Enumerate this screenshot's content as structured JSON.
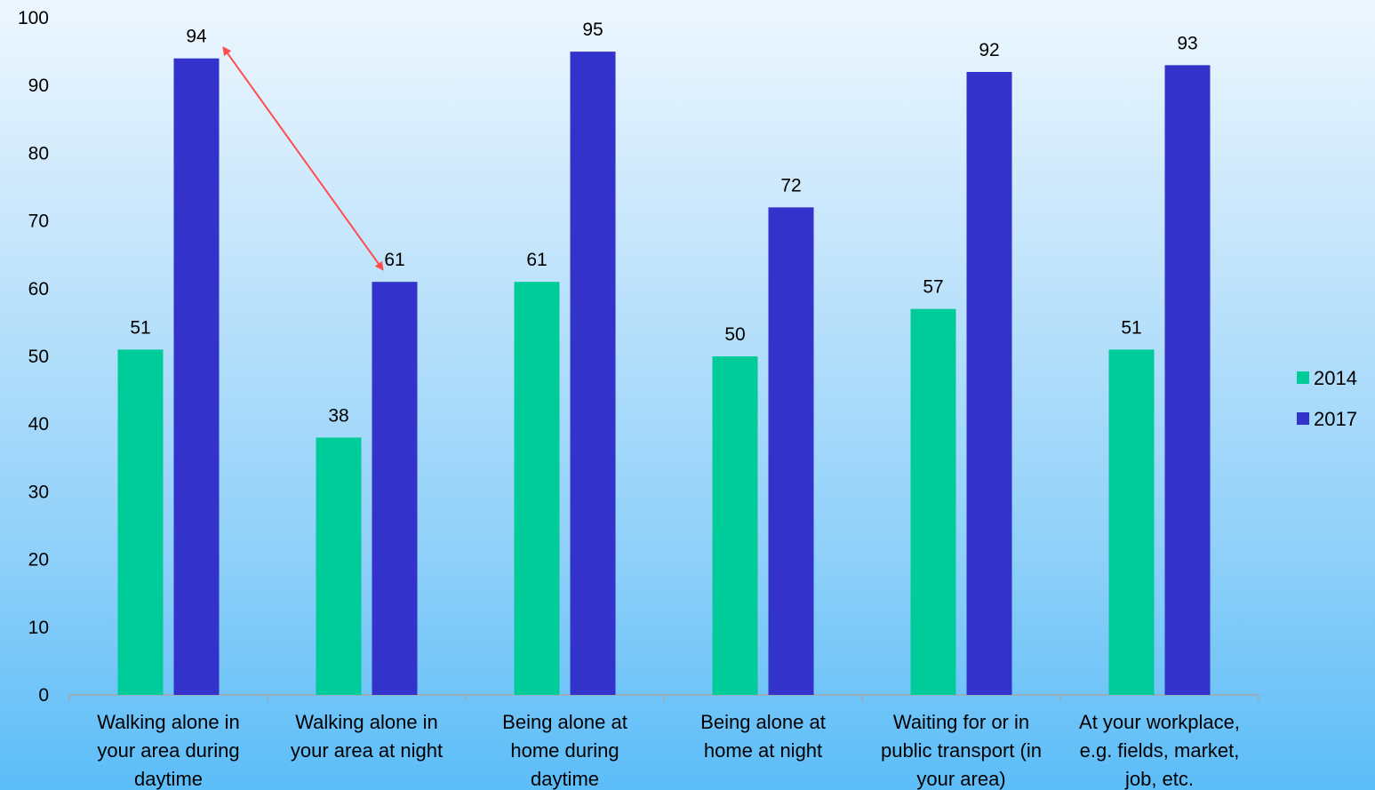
{
  "chart_data": {
    "type": "bar",
    "categories": [
      [
        "Walking alone in",
        "your area during",
        "daytime"
      ],
      [
        "Walking alone in",
        "your area at night"
      ],
      [
        "Being alone at",
        "home during",
        "daytime"
      ],
      [
        "Being alone at",
        "home at night"
      ],
      [
        "Waiting for or in",
        "public transport (in",
        "your area)"
      ],
      [
        "At your workplace,",
        "e.g. fields, market,",
        "job, etc."
      ]
    ],
    "series": [
      {
        "name": "2014",
        "color": "#00cc99",
        "values": [
          51,
          38,
          61,
          50,
          57,
          51
        ],
        "labels": [
          "51",
          "38",
          "61",
          "50",
          "57",
          "51"
        ]
      },
      {
        "name": "2017",
        "color": "#3333cc",
        "values": [
          94,
          61,
          95,
          72,
          92,
          93
        ],
        "labels": [
          "94",
          "61",
          "95",
          "72",
          "92",
          "93"
        ]
      }
    ],
    "ylim": [
      0,
      100
    ],
    "yticks": [
      0,
      10,
      20,
      30,
      40,
      50,
      60,
      70,
      80,
      90,
      100
    ],
    "ytick_labels": [
      "0",
      "10",
      "20",
      "30",
      "40",
      "50",
      "60",
      "70",
      "80",
      "90",
      "100"
    ],
    "grid": false,
    "legend_position": "right",
    "annotation": {
      "type": "double-arrow",
      "color": "#ff4d4d",
      "from": {
        "category_index": 0,
        "series": "2017",
        "value": 94
      },
      "to": {
        "category_index": 1,
        "series": "2017",
        "value": 61
      }
    }
  }
}
